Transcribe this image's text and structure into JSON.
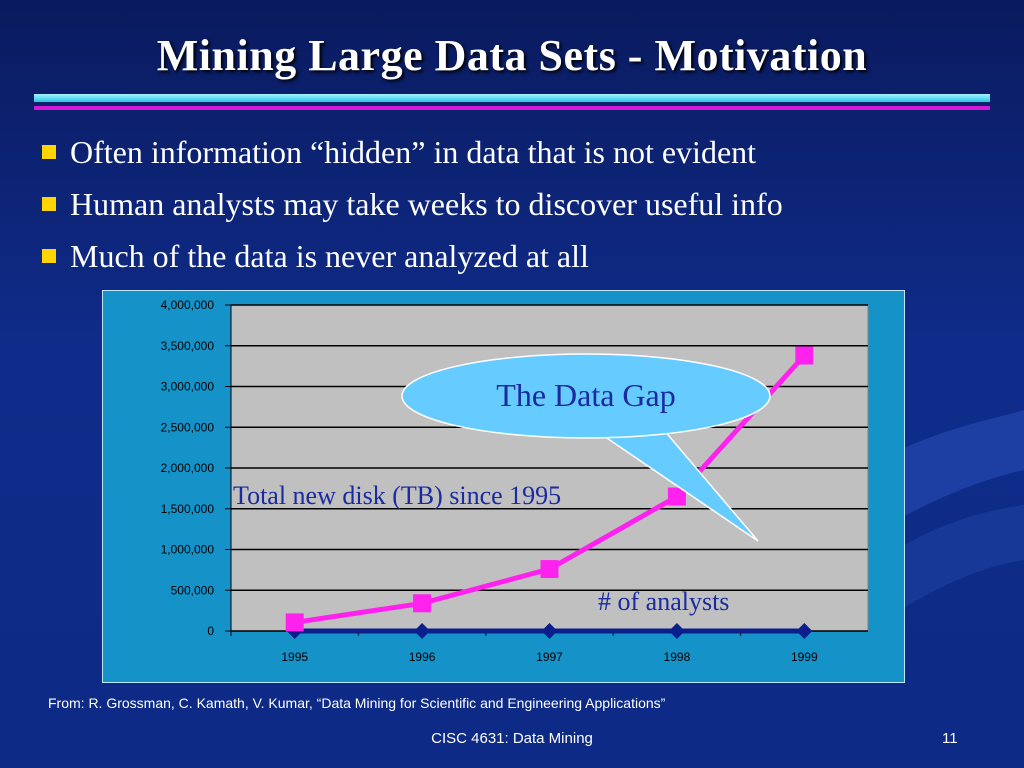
{
  "slide": {
    "title": "Mining Large Data Sets - Motivation",
    "bullets": [
      "Often information “hidden” in data that is not evident",
      "Human analysts may take weeks to discover useful info",
      "Much of the data is never analyzed at all"
    ],
    "source": "From: R. Grossman, C. Kamath, V. Kumar, “Data Mining for Scientific and Engineering  Applications”",
    "footer": "CISC 4631: Data Mining",
    "page_number": "11"
  },
  "colors": {
    "background": "#0f2c8a",
    "bullet": "#ffd400",
    "chart_frame": "#1593c9",
    "plot_area": "#c0c0c0",
    "disk_series": "#ff22ee",
    "analysts_series": "#0a1f8c",
    "callout": "#66ccff"
  },
  "chart_data": {
    "type": "line",
    "categories": [
      "1995",
      "1996",
      "1997",
      "1998",
      "1999"
    ],
    "ylim": [
      0,
      4000000
    ],
    "yticks": [
      0,
      500000,
      1000000,
      1500000,
      2000000,
      2500000,
      3000000,
      3500000,
      4000000
    ],
    "ytick_labels": [
      "0",
      "500,000",
      "1,000,000",
      "1,500,000",
      "2,000,000",
      "2,500,000",
      "3,000,000",
      "3,500,000",
      "4,000,000"
    ],
    "grid": true,
    "series": [
      {
        "name": "Total new disk (TB) since 1995",
        "values": [
          105000,
          340000,
          760000,
          1650000,
          3380000
        ],
        "color": "#ff22ee",
        "marker": "square"
      },
      {
        "name": "# of analysts",
        "values": [
          0,
          0,
          0,
          0,
          0
        ],
        "color": "#0a1f8c",
        "marker": "diamond"
      }
    ],
    "annotation": "The Data Gap"
  }
}
